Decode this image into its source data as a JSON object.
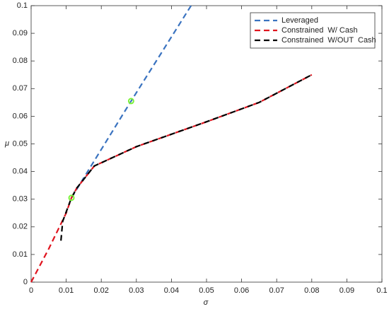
{
  "chart_data": {
    "type": "line",
    "xlabel": "σ",
    "ylabel": "μ",
    "xlim": [
      0,
      0.1
    ],
    "ylim": [
      0,
      0.1
    ],
    "xticks": [
      0,
      0.01,
      0.02,
      0.03,
      0.04,
      0.05,
      0.06,
      0.07,
      0.08,
      0.09,
      0.1
    ],
    "yticks": [
      0,
      0.01,
      0.02,
      0.03,
      0.04,
      0.05,
      0.06,
      0.07,
      0.08,
      0.09,
      0.1
    ],
    "line_style": "dashed",
    "legend": "northeast",
    "grid": false,
    "series": [
      {
        "name": "Leveraged",
        "color": "#3a73c0",
        "x": [
          0.0115,
          0.0285,
          0.0456
        ],
        "values": [
          0.0305,
          0.0655,
          0.1
        ]
      },
      {
        "name": "Constrained  W/ Cash",
        "color": "#e0141e",
        "x": [
          0,
          0.005,
          0.01,
          0.0115,
          0.013,
          0.018,
          0.03,
          0.05,
          0.065,
          0.08
        ],
        "values": [
          0,
          0.012,
          0.025,
          0.0305,
          0.034,
          0.042,
          0.049,
          0.058,
          0.065,
          0.075
        ]
      },
      {
        "name": "Constrained  W/OUT  Cash",
        "color": "#000000",
        "x": [
          0.0085,
          0.009,
          0.0115,
          0.013,
          0.018,
          0.03,
          0.05,
          0.065,
          0.08
        ],
        "values": [
          0.015,
          0.022,
          0.0305,
          0.034,
          0.042,
          0.049,
          0.058,
          0.065,
          0.075
        ]
      }
    ],
    "points": {
      "color": "#7cf23a",
      "x": [
        0.0115,
        0.0285
      ],
      "values": [
        0.0305,
        0.0655
      ]
    }
  }
}
